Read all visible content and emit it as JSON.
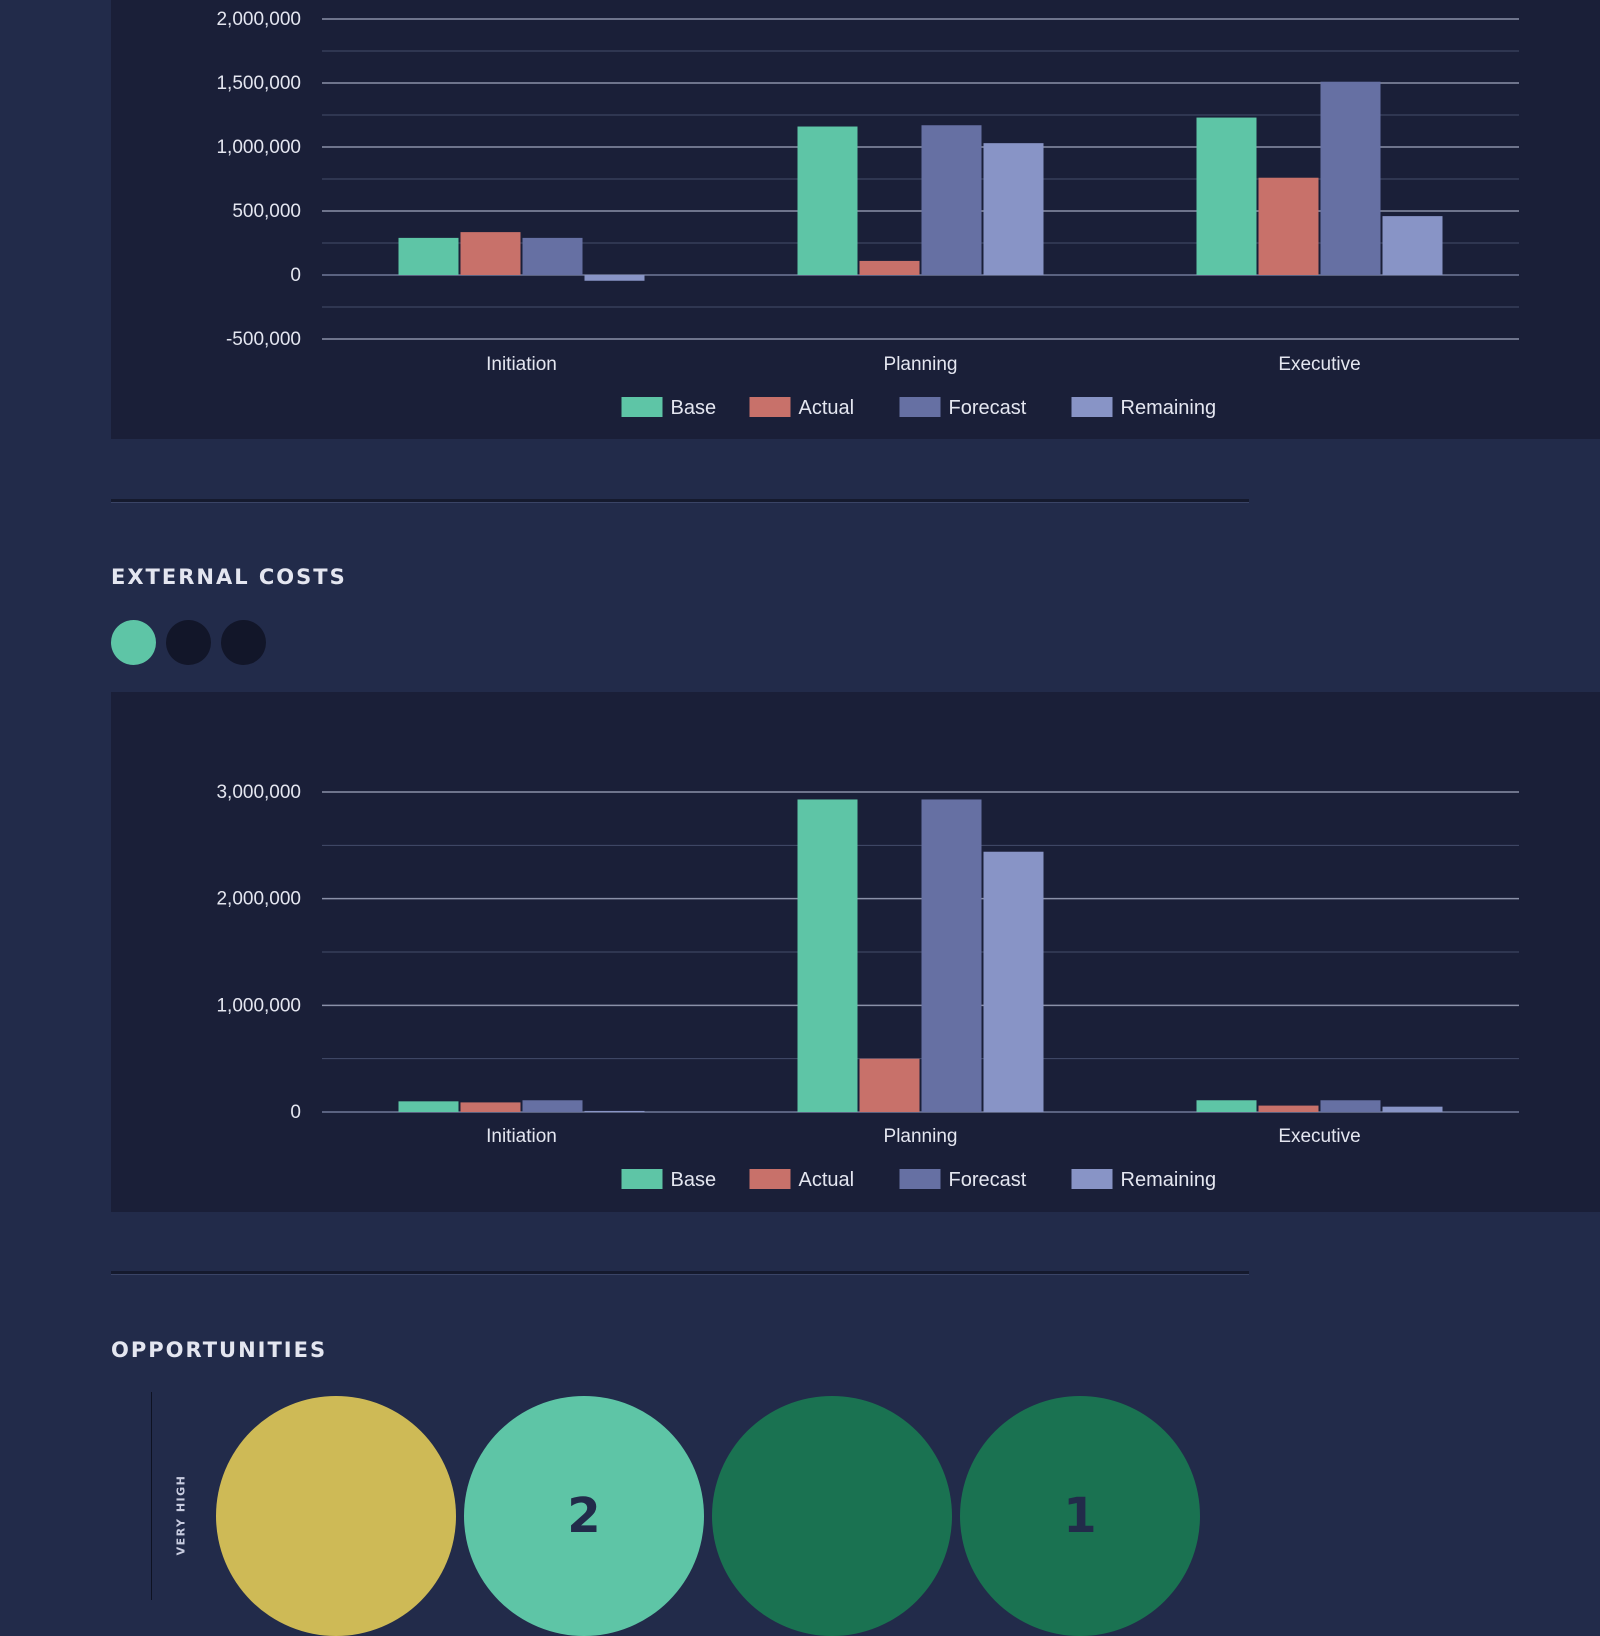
{
  "sections": {
    "external_costs": "EXTERNAL COSTS",
    "opportunities": "OPPORTUNITIES"
  },
  "colors": {
    "Base": "#5ec5a6",
    "Actual": "#c8716a",
    "Forecast": "#6670a3",
    "Remaining": "#8894c6"
  },
  "opportunities": {
    "row_label": "VERY HIGH",
    "bubbles": [
      {
        "count": "",
        "color": "#ceba56"
      },
      {
        "count": "2",
        "color": "#5ec5a6"
      },
      {
        "count": "",
        "color": "#1a7251"
      },
      {
        "count": "1",
        "color": "#1a7251"
      }
    ]
  },
  "chart_data": [
    {
      "type": "bar",
      "categories": [
        "Initiation",
        "Planning",
        "Executive"
      ],
      "series": [
        {
          "name": "Base",
          "values": [
            290000,
            1160000,
            1230000
          ]
        },
        {
          "name": "Actual",
          "values": [
            335000,
            110000,
            760000
          ]
        },
        {
          "name": "Forecast",
          "values": [
            290000,
            1170000,
            1510000
          ]
        },
        {
          "name": "Remaining",
          "values": [
            -45000,
            1030000,
            460000
          ]
        }
      ],
      "ylim": [
        -500000,
        2000000
      ],
      "yticks": [
        "2,000,000",
        "1,500,000",
        "1,000,000",
        "500,000",
        "0",
        "-500,000"
      ],
      "legend": "bottom"
    },
    {
      "type": "bar",
      "categories": [
        "Initiation",
        "Planning",
        "Executive"
      ],
      "series": [
        {
          "name": "Base",
          "values": [
            100000,
            2930000,
            110000
          ]
        },
        {
          "name": "Actual",
          "values": [
            90000,
            500000,
            60000
          ]
        },
        {
          "name": "Forecast",
          "values": [
            110000,
            2930000,
            110000
          ]
        },
        {
          "name": "Remaining",
          "values": [
            10000,
            2440000,
            50000
          ]
        }
      ],
      "ylim": [
        0,
        3000000
      ],
      "yticks": [
        "3,000,000",
        "2,000,000",
        "1,000,000",
        "0"
      ],
      "legend": "bottom"
    }
  ]
}
